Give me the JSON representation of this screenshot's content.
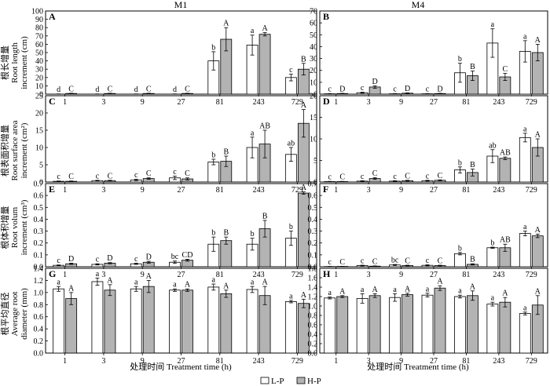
{
  "figure": {
    "columns": [
      "M1",
      "M4"
    ],
    "row_labels": [
      [
        "根长增量",
        "Root length",
        "increment (cm)"
      ],
      [
        "根表面积增量",
        "Root surface area",
        "increment (cm²)"
      ],
      [
        "根体积增量",
        "Root volum",
        "increment (cm³)"
      ],
      [
        "根平均直径",
        "Average root",
        "diameter (mm)"
      ]
    ],
    "xlabel": "处理时间 Treatment time (h)",
    "legend": [
      "L-P",
      "H-P"
    ],
    "colors": {
      "L-P": "#ffffff",
      "H-P": "#b3b3b3",
      "axis": "#000000"
    }
  },
  "chart_data": [
    {
      "type": "bar",
      "panel": "A",
      "column": "M1",
      "categories": [
        "1",
        "3",
        "9",
        "27",
        "81",
        "243",
        "729"
      ],
      "ylim": [
        0,
        100
      ],
      "yticks": [
        0,
        10,
        20,
        30,
        40,
        50,
        60,
        70,
        80,
        90,
        100
      ],
      "yprec": 0,
      "series": [
        {
          "name": "L-P",
          "values": [
            0,
            0,
            0,
            0,
            40,
            59,
            20
          ],
          "errors": [
            0.3,
            0.3,
            0.3,
            0.3,
            11,
            12,
            4
          ],
          "letters": [
            "d",
            "d",
            "d",
            "d",
            "b",
            "a",
            "c"
          ]
        },
        {
          "name": "H-P",
          "values": [
            0.8,
            0.8,
            0.8,
            0.8,
            66,
            72,
            30
          ],
          "errors": [
            0.3,
            0.3,
            0.3,
            0.3,
            14,
            2,
            7
          ],
          "letters": [
            "C",
            "C",
            "C",
            "C",
            "A",
            "A",
            "B"
          ]
        }
      ]
    },
    {
      "type": "bar",
      "panel": "B",
      "column": "M4",
      "categories": [
        "1",
        "3",
        "9",
        "27",
        "81",
        "243",
        "729"
      ],
      "ylim": [
        0,
        70
      ],
      "yticks": [
        0,
        10,
        20,
        30,
        40,
        50,
        60,
        70
      ],
      "yprec": 0,
      "series": [
        {
          "name": "L-P",
          "values": [
            0.3,
            1.2,
            0.3,
            0.3,
            18,
            43,
            36
          ],
          "errors": [
            0.2,
            0.4,
            0.2,
            0.2,
            8,
            12,
            9
          ],
          "letters": [
            "c",
            "c",
            "c",
            "c",
            "b",
            "a",
            "a"
          ]
        },
        {
          "name": "H-P",
          "values": [
            0.5,
            6,
            0.8,
            0.5,
            15.5,
            14.5,
            35
          ],
          "errors": [
            0.2,
            1,
            0.3,
            0.2,
            4,
            3,
            7
          ],
          "letters": [
            "D",
            "D",
            "D",
            "D",
            "B",
            "C",
            "A"
          ]
        }
      ]
    },
    {
      "type": "bar",
      "panel": "C",
      "column": "M1",
      "categories": [
        "1",
        "3",
        "9",
        "27",
        "81",
        "243",
        "729"
      ],
      "ylim": [
        0,
        25
      ],
      "yticks": [
        0,
        5,
        10,
        15,
        20,
        25
      ],
      "yprec": 0,
      "series": [
        {
          "name": "L-P",
          "values": [
            0.2,
            0.4,
            0.6,
            1.2,
            5.8,
            10,
            8
          ],
          "errors": [
            0.1,
            0.1,
            0.2,
            0.5,
            0.8,
            3,
            2
          ],
          "letters": [
            "c",
            "c",
            "c",
            "c",
            "b",
            "a",
            "ab"
          ]
        },
        {
          "name": "H-P",
          "values": [
            0.2,
            0.4,
            1.0,
            0.9,
            6,
            11,
            17
          ],
          "errors": [
            0.1,
            0.1,
            0.2,
            0.3,
            1.5,
            4,
            4
          ],
          "letters": [
            "C",
            "C",
            "C",
            "C",
            "B",
            "AB",
            "A"
          ]
        }
      ]
    },
    {
      "type": "bar",
      "panel": "D",
      "column": "M4",
      "categories": [
        "1",
        "3",
        "9",
        "27",
        "81",
        "243",
        "729"
      ],
      "ylim": [
        0,
        20
      ],
      "yticks": [
        0,
        5,
        10,
        15,
        20
      ],
      "yprec": 0,
      "series": [
        {
          "name": "L-P",
          "values": [
            0.1,
            0.2,
            0.2,
            0.3,
            2.8,
            6,
            10.3
          ],
          "errors": [
            0.05,
            0.1,
            0.1,
            0.1,
            0.7,
            1.5,
            1
          ],
          "letters": [
            "c",
            "c",
            "c",
            "c",
            "b",
            "ab",
            "a"
          ]
        },
        {
          "name": "H-P",
          "values": [
            0.1,
            0.8,
            0.3,
            0.4,
            2.2,
            5.5,
            8
          ],
          "errors": [
            0.05,
            0.2,
            0.1,
            0.1,
            0.8,
            0.3,
            2
          ],
          "letters": [
            "C",
            "C",
            "C",
            "C",
            "B",
            "AB",
            "A"
          ]
        }
      ]
    },
    {
      "type": "bar",
      "panel": "E",
      "column": "M1",
      "categories": [
        "1",
        "3",
        "9",
        "27",
        "81",
        "243",
        "729"
      ],
      "ylim": [
        0,
        0.7
      ],
      "yticks": [
        0,
        0.1,
        0.2,
        0.3,
        0.4,
        0.5,
        0.6,
        0.7
      ],
      "yprec": 1,
      "series": [
        {
          "name": "L-P",
          "values": [
            0.012,
            0.02,
            0.025,
            0.038,
            0.19,
            0.19,
            0.24
          ],
          "errors": [
            0.003,
            0.005,
            0.005,
            0.01,
            0.06,
            0.05,
            0.06
          ],
          "letters": [
            "c",
            "c",
            "c",
            "bc",
            "b",
            "b",
            "b"
          ]
        },
        {
          "name": "H-P",
          "values": [
            0.025,
            0.03,
            0.038,
            0.055,
            0.22,
            0.32,
            0.62
          ],
          "errors": [
            0.005,
            0.005,
            0.008,
            0.008,
            0.03,
            0.07,
            0.01
          ],
          "letters": [
            "D",
            "D",
            "D",
            "CD",
            "B",
            "B",
            "A"
          ]
        }
      ]
    },
    {
      "type": "bar",
      "panel": "F",
      "column": "M4",
      "categories": [
        "1",
        "3",
        "9",
        "27",
        "81",
        "243",
        "729"
      ],
      "ylim": [
        0,
        0.7
      ],
      "yticks": [
        0,
        0.1,
        0.2,
        0.3,
        0.4,
        0.5,
        0.6,
        0.7
      ],
      "yprec": 1,
      "series": [
        {
          "name": "L-P",
          "values": [
            0.002,
            0.01,
            0.015,
            0.012,
            0.11,
            0.16,
            0.28
          ],
          "errors": [
            0.001,
            0.003,
            0.004,
            0.004,
            0.01,
            0.005,
            0.02
          ],
          "letters": [
            "c",
            "c",
            "bc",
            "c",
            "b",
            "b",
            "a"
          ]
        },
        {
          "name": "H-P",
          "values": [
            0.003,
            0.005,
            0.01,
            0.01,
            0.02,
            0.16,
            0.26
          ],
          "errors": [
            0.001,
            0.002,
            0.003,
            0.003,
            0.005,
            0.03,
            0.015
          ],
          "letters": [
            "C",
            "C",
            "C",
            "C",
            "B",
            "AB",
            "A"
          ]
        }
      ]
    },
    {
      "type": "bar",
      "panel": "G",
      "column": "M1",
      "categories": [
        "1",
        "3",
        "9",
        "27",
        "81",
        "243",
        "729"
      ],
      "ylim": [
        0,
        1.4
      ],
      "yticks": [
        0,
        0.2,
        0.4,
        0.6,
        0.8,
        1.0,
        1.2,
        1.4
      ],
      "yprec": 1,
      "series": [
        {
          "name": "L-P",
          "values": [
            1.06,
            1.18,
            1.06,
            1.04,
            1.09,
            1.05,
            0.85
          ],
          "errors": [
            0.04,
            0.06,
            0.04,
            0.02,
            0.05,
            0.05,
            0.02
          ],
          "letters": [
            "a",
            "a",
            "a",
            "a",
            "a",
            "a",
            "a"
          ]
        },
        {
          "name": "H-P",
          "values": [
            0.9,
            1.04,
            1.1,
            1.04,
            0.98,
            0.95,
            0.82
          ],
          "errors": [
            0.1,
            0.09,
            0.1,
            0.02,
            0.06,
            0.15,
            0.07
          ],
          "letters": [
            "A",
            "A",
            "A",
            "A",
            "A",
            "A",
            "A"
          ]
        }
      ]
    },
    {
      "type": "bar",
      "panel": "H",
      "column": "M4",
      "categories": [
        "1",
        "3",
        "9",
        "27",
        "81",
        "243",
        "729"
      ],
      "ylim": [
        0,
        1.8
      ],
      "yticks": [
        0,
        0.2,
        0.4,
        0.6,
        0.8,
        1.0,
        1.2,
        1.4,
        1.6,
        1.8
      ],
      "yprec": 1,
      "series": [
        {
          "name": "L-P",
          "values": [
            1.17,
            1.16,
            1.18,
            1.23,
            1.2,
            1.04,
            0.84
          ],
          "errors": [
            0.02,
            0.1,
            0.08,
            0.04,
            0.03,
            0.04,
            0.03
          ],
          "letters": [
            "a",
            "a",
            "a",
            "a",
            "a",
            "a",
            "a"
          ]
        },
        {
          "name": "H-P",
          "values": [
            1.2,
            1.22,
            1.24,
            1.38,
            1.22,
            1.08,
            1.02
          ],
          "errors": [
            0.02,
            0.04,
            0.03,
            0.05,
            0.1,
            0.1,
            0.2
          ],
          "letters": [
            "A",
            "A",
            "A",
            "A",
            "A",
            "A",
            "A"
          ]
        }
      ]
    }
  ]
}
